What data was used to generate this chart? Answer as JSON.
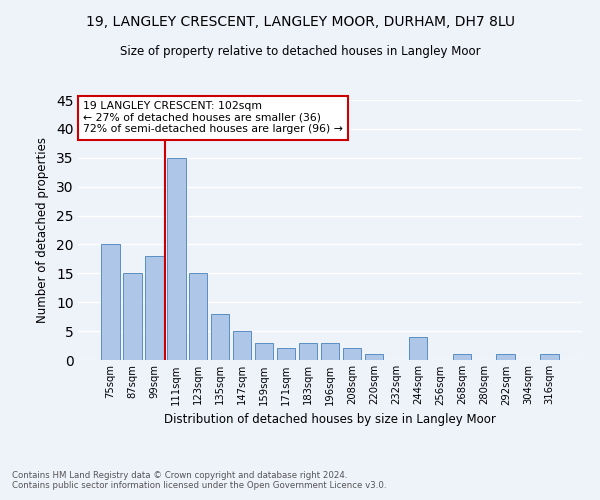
{
  "title1": "19, LANGLEY CRESCENT, LANGLEY MOOR, DURHAM, DH7 8LU",
  "title2": "Size of property relative to detached houses in Langley Moor",
  "xlabel": "Distribution of detached houses by size in Langley Moor",
  "ylabel": "Number of detached properties",
  "categories": [
    "75sqm",
    "87sqm",
    "99sqm",
    "111sqm",
    "123sqm",
    "135sqm",
    "147sqm",
    "159sqm",
    "171sqm",
    "183sqm",
    "196sqm",
    "208sqm",
    "220sqm",
    "232sqm",
    "244sqm",
    "256sqm",
    "268sqm",
    "280sqm",
    "292sqm",
    "304sqm",
    "316sqm"
  ],
  "values": [
    20,
    15,
    18,
    35,
    15,
    8,
    5,
    3,
    2,
    3,
    3,
    2,
    1,
    0,
    4,
    0,
    1,
    0,
    1,
    0,
    1
  ],
  "bar_color": "#aec6e8",
  "bar_edge_color": "#5a8fc2",
  "vline_color": "#cc0000",
  "annotation_text": "19 LANGLEY CRESCENT: 102sqm\n← 27% of detached houses are smaller (36)\n72% of semi-detached houses are larger (96) →",
  "annotation_box_color": "#ffffff",
  "annotation_box_edge_color": "#cc0000",
  "ylim": [
    0,
    45
  ],
  "yticks": [
    0,
    5,
    10,
    15,
    20,
    25,
    30,
    35,
    40,
    45
  ],
  "footer": "Contains HM Land Registry data © Crown copyright and database right 2024.\nContains public sector information licensed under the Open Government Licence v3.0.",
  "background_color": "#eef2f9",
  "grid_color": "#ffffff"
}
